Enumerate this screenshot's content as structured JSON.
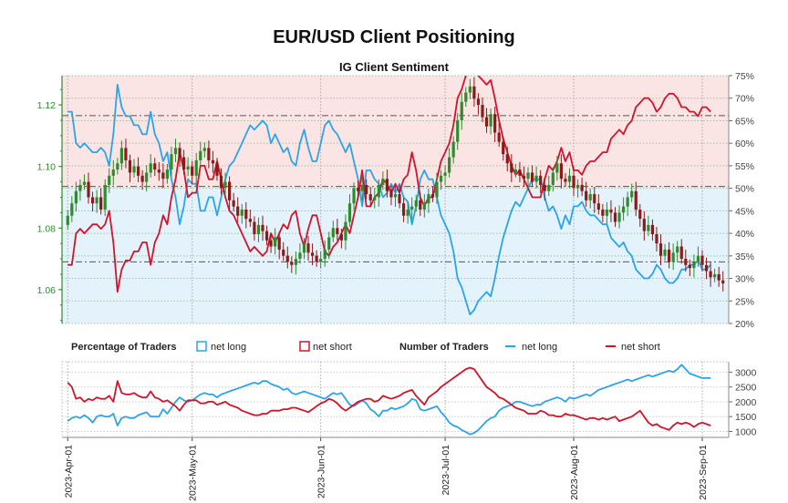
{
  "title": "EUR/USD Client Positioning",
  "subtitle": "IG Client Sentiment",
  "colors": {
    "long": "#2ca4e8",
    "short": "#d0142c",
    "bull": "#2e8b2e",
    "bear": "#8b1a1a",
    "long_bg": "#e4f3fb",
    "short_bg": "#fbe4e4",
    "left_axis": "#2e8b2e"
  },
  "legend": {
    "pct_title": "Percentage of Traders",
    "pct_long": "net long",
    "pct_short": "net short",
    "num_title": "Number of Traders",
    "num_long": "net long",
    "num_short": "net short"
  },
  "chart_data": [
    {
      "type": "candlestick",
      "title": "EUR/USD Client Positioning",
      "subtitle": "IG Client Sentiment",
      "left_axis": {
        "ticks": [
          "1.06",
          "1.08",
          "1.10",
          "1.12"
        ],
        "range": [
          1.049,
          1.1295
        ]
      },
      "right_axis": {
        "ticks": [
          "20%",
          "25%",
          "30%",
          "35%",
          "40%",
          "45%",
          "50%",
          "55%",
          "60%",
          "65%",
          "70%",
          "75%"
        ],
        "range": [
          20,
          75
        ]
      },
      "reference_lines": {
        "price_levels": [
          1.1165,
          1.0935,
          1.069
        ]
      },
      "x_ticks": [
        "2023-Apr-01",
        "2023-May-01",
        "2023-Jun-01",
        "2023-Jul-01",
        "2023-Aug-01",
        "2023-Sep-01"
      ],
      "price_close": [
        1.084,
        1.088,
        1.092,
        1.094,
        1.095,
        1.09,
        1.088,
        1.09,
        1.086,
        1.094,
        1.097,
        1.099,
        1.101,
        1.106,
        1.102,
        1.098,
        1.1,
        1.097,
        1.095,
        1.098,
        1.101,
        1.099,
        1.098,
        1.096,
        1.099,
        1.104,
        1.106,
        1.103,
        1.099,
        1.1,
        1.097,
        1.102,
        1.105,
        1.106,
        1.102,
        1.101,
        1.097,
        1.093,
        1.095,
        1.089,
        1.087,
        1.084,
        1.086,
        1.083,
        1.082,
        1.078,
        1.081,
        1.079,
        1.076,
        1.074,
        1.077,
        1.073,
        1.071,
        1.069,
        1.068,
        1.07,
        1.072,
        1.075,
        1.072,
        1.071,
        1.069,
        1.07,
        1.073,
        1.077,
        1.08,
        1.078,
        1.076,
        1.082,
        1.088,
        1.093,
        1.092,
        1.094,
        1.091,
        1.089,
        1.09,
        1.094,
        1.096,
        1.092,
        1.09,
        1.091,
        1.088,
        1.084,
        1.086,
        1.087,
        1.089,
        1.086,
        1.088,
        1.091,
        1.09,
        1.095,
        1.097,
        1.098,
        1.103,
        1.108,
        1.115,
        1.121,
        1.124,
        1.126,
        1.122,
        1.12,
        1.116,
        1.113,
        1.117,
        1.111,
        1.108,
        1.104,
        1.101,
        1.098,
        1.099,
        1.097,
        1.096,
        1.098,
        1.095,
        1.097,
        1.094,
        1.092,
        1.094,
        1.098,
        1.101,
        1.096,
        1.095,
        1.097,
        1.093,
        1.094,
        1.092,
        1.089,
        1.091,
        1.088,
        1.086,
        1.084,
        1.086,
        1.085,
        1.082,
        1.085,
        1.087,
        1.09,
        1.092,
        1.086,
        1.083,
        1.079,
        1.081,
        1.078,
        1.075,
        1.071,
        1.073,
        1.069,
        1.072,
        1.074,
        1.07,
        1.068,
        1.067,
        1.069,
        1.071,
        1.068,
        1.066,
        1.064,
        1.065,
        1.063,
        1.062
      ],
      "pct_net_long": [
        67,
        67,
        60,
        59,
        60,
        59,
        58,
        58,
        59,
        58,
        55,
        62,
        73,
        68,
        66,
        66,
        64,
        64,
        62,
        62,
        67,
        62,
        60,
        56,
        58,
        52,
        48,
        42,
        46,
        52,
        51,
        51,
        45,
        45,
        48,
        48,
        44,
        48,
        52,
        55,
        56,
        58,
        60,
        62,
        64,
        63,
        64,
        65,
        64,
        60,
        62,
        60,
        58,
        59,
        56,
        55,
        60,
        63,
        59,
        56,
        56,
        60,
        64,
        65,
        63,
        62,
        60,
        58,
        60,
        56,
        52,
        46,
        54,
        54,
        52,
        51,
        48,
        49,
        51,
        49,
        51,
        48,
        47,
        42,
        46,
        52,
        54,
        52,
        52,
        48,
        44,
        42,
        40,
        36,
        30,
        28,
        25,
        22,
        23,
        25,
        26,
        27,
        26,
        30,
        35,
        39,
        42,
        45,
        47,
        46,
        48,
        50,
        52,
        52,
        52,
        48,
        45,
        46,
        44,
        41,
        44,
        42,
        46,
        46,
        47,
        45,
        44,
        44,
        43,
        42,
        42,
        39,
        38,
        37,
        38,
        36,
        35,
        32,
        31,
        30,
        30,
        31,
        33,
        32,
        30,
        29,
        29,
        30,
        32,
        32,
        33,
        33,
        34,
        32,
        32,
        33
      ],
      "num_net_long_scale": {
        "ticks": [
          "1000",
          "1500",
          "2000",
          "2500",
          "3000"
        ],
        "range": [
          800,
          3350
        ]
      },
      "num_net_long": [
        1350,
        1450,
        1500,
        1450,
        1550,
        1450,
        1300,
        1500,
        1550,
        1500,
        1500,
        1600,
        1200,
        1450,
        1500,
        1450,
        1450,
        1550,
        1600,
        1650,
        1500,
        1500,
        1500,
        1750,
        1600,
        1800,
        2000,
        2150,
        2050,
        2000,
        2050,
        2150,
        2250,
        2300,
        2250,
        2250,
        2150,
        2250,
        2300,
        2350,
        2400,
        2450,
        2500,
        2550,
        2600,
        2650,
        2600,
        2700,
        2700,
        2600,
        2550,
        2500,
        2400,
        2450,
        2300,
        2250,
        2300,
        2350,
        2300,
        2250,
        2200,
        2150,
        2100,
        2200,
        2300,
        2250,
        2300,
        2100,
        1900,
        1850,
        1950,
        2050,
        1950,
        1750,
        1650,
        1500,
        1700,
        1700,
        1800,
        1750,
        1800,
        1850,
        1950,
        2100,
        2050,
        1750,
        1700,
        1750,
        1800,
        1850,
        1650,
        1500,
        1300,
        1200,
        1150,
        1050,
        980,
        900,
        950,
        1050,
        1200,
        1350,
        1450,
        1500,
        1700,
        1800,
        1850,
        1900,
        2000,
        2000,
        1950,
        1900,
        1850,
        1900,
        1900,
        2000,
        2050,
        2100,
        2150,
        2100,
        2000,
        2150,
        2100,
        2150,
        2200,
        2250,
        2200,
        2300,
        2400,
        2450,
        2500,
        2550,
        2600,
        2650,
        2700,
        2750,
        2700,
        2750,
        2800,
        2850,
        2900,
        2850,
        2900,
        2950,
        3000,
        3050,
        3000,
        3100,
        3250,
        3100,
        2950,
        2900,
        2850,
        2800,
        2800,
        2800
      ],
      "num_net_short": [
        2650,
        2500,
        2100,
        2150,
        2000,
        2100,
        2050,
        2150,
        2100,
        2100,
        2200,
        2000,
        2700,
        2300,
        2250,
        2250,
        2300,
        2200,
        2150,
        2150,
        2350,
        2150,
        2100,
        2000,
        2050,
        1950,
        1850,
        1700,
        1900,
        2050,
        2050,
        2050,
        1950,
        1950,
        2000,
        2000,
        1900,
        1950,
        2000,
        1900,
        1850,
        1800,
        1700,
        1650,
        1600,
        1550,
        1550,
        1600,
        1600,
        1700,
        1700,
        1700,
        1750,
        1750,
        1800,
        1800,
        1750,
        1700,
        1650,
        1750,
        1850,
        1950,
        2000,
        2100,
        2050,
        1950,
        1800,
        1700,
        1800,
        1900,
        2000,
        2050,
        2100,
        2100,
        2000,
        2050,
        2200,
        2150,
        2100,
        2150,
        2200,
        2300,
        2350,
        2400,
        2200,
        2050,
        1900,
        2150,
        2250,
        2350,
        2500,
        2600,
        2700,
        2800,
        2900,
        3000,
        3100,
        3150,
        3100,
        2900,
        2700,
        2500,
        2400,
        2300,
        2150,
        2100,
        2000,
        1900,
        1800,
        1750,
        1700,
        1600,
        1600,
        1600,
        1700,
        1650,
        1550,
        1550,
        1500,
        1500,
        1600,
        1550,
        1550,
        1500,
        1450,
        1400,
        1450,
        1450,
        1400,
        1450,
        1400,
        1450,
        1500,
        1350,
        1400,
        1450,
        1500,
        1600,
        1700,
        1500,
        1300,
        1200,
        1250,
        1150,
        1100,
        1050,
        1200,
        1300,
        1250,
        1300,
        1250,
        1150,
        1250,
        1300,
        1250,
        1200
      ]
    }
  ]
}
